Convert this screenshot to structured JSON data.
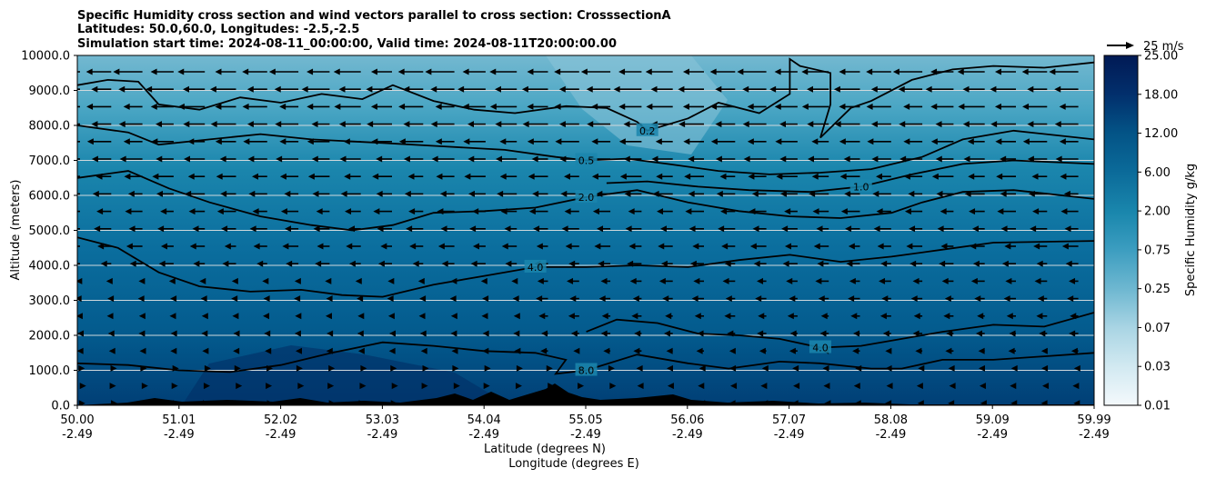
{
  "chart_data": {
    "type": "contourf",
    "title_lines": [
      "Specific Humidity cross section and wind vectors parallel to cross section: CrosssectionA",
      "Latitudes: 50.0,60.0, Longitudes: -2.5,-2.5",
      "Simulation start time: 2024-08-11_00:00:00, Valid time: 2024-08-11T20:00:00.00"
    ],
    "ylabel": "Altitude (meters)",
    "xlabel_lines": [
      "Latitude (degrees N)",
      "Longitude (degrees E)"
    ],
    "ylim": [
      0,
      10000
    ],
    "xlim": [
      50.0,
      59.99
    ],
    "y_ticks": [
      "0.0",
      "1000.0",
      "2000.0",
      "3000.0",
      "4000.0",
      "5000.0",
      "6000.0",
      "7000.0",
      "8000.0",
      "9000.0",
      "10000.0"
    ],
    "x_ticks": [
      {
        "lat": "50.00",
        "lon": "-2.49"
      },
      {
        "lat": "51.01",
        "lon": "-2.49"
      },
      {
        "lat": "52.02",
        "lon": "-2.49"
      },
      {
        "lat": "53.03",
        "lon": "-2.49"
      },
      {
        "lat": "54.04",
        "lon": "-2.49"
      },
      {
        "lat": "55.05",
        "lon": "-2.49"
      },
      {
        "lat": "56.06",
        "lon": "-2.49"
      },
      {
        "lat": "57.07",
        "lon": "-2.49"
      },
      {
        "lat": "58.08",
        "lon": "-2.49"
      },
      {
        "lat": "59.09",
        "lon": "-2.49"
      },
      {
        "lat": "59.99",
        "lon": "-2.49"
      }
    ],
    "colorbar": {
      "label": "Specific Humidity g/kg",
      "tick_labels": [
        "0.01",
        "0.03",
        "0.07",
        "0.25",
        "0.75",
        "2.00",
        "6.00",
        "12.00",
        "18.00",
        "25.00"
      ]
    },
    "quiver_key": "25 m/s",
    "contours": [
      {
        "level": "0.2",
        "points": [
          [
            50.0,
            9150
          ],
          [
            50.3,
            9300
          ],
          [
            50.6,
            9250
          ],
          [
            50.8,
            8600
          ],
          [
            51.2,
            8450
          ],
          [
            51.6,
            8800
          ],
          [
            52.0,
            8650
          ],
          [
            52.4,
            8900
          ],
          [
            52.8,
            8750
          ],
          [
            53.1,
            9150
          ],
          [
            53.5,
            8700
          ],
          [
            53.9,
            8450
          ],
          [
            54.3,
            8350
          ],
          [
            54.8,
            8550
          ],
          [
            55.2,
            8500
          ],
          [
            55.5,
            8100
          ],
          [
            55.6,
            7850
          ],
          [
            56.0,
            8200
          ],
          [
            56.3,
            8650
          ],
          [
            56.7,
            8350
          ],
          [
            57.0,
            8900
          ],
          [
            57.0,
            9900
          ],
          [
            57.1,
            9700
          ],
          [
            57.4,
            9500
          ],
          [
            57.4,
            8600
          ],
          [
            57.3,
            7650
          ],
          [
            57.6,
            8500
          ],
          [
            57.8,
            8700
          ],
          [
            58.2,
            9300
          ],
          [
            58.6,
            9600
          ],
          [
            59.0,
            9700
          ],
          [
            59.5,
            9650
          ],
          [
            59.99,
            9800
          ]
        ]
      },
      {
        "level": "0.5",
        "points": [
          [
            50.0,
            8000
          ],
          [
            50.5,
            7800
          ],
          [
            50.8,
            7450
          ],
          [
            51.3,
            7600
          ],
          [
            51.8,
            7750
          ],
          [
            52.3,
            7600
          ],
          [
            53.0,
            7500
          ],
          [
            53.6,
            7400
          ],
          [
            54.2,
            7300
          ],
          [
            54.7,
            7100
          ],
          [
            55.0,
            7000
          ],
          [
            55.4,
            7050
          ],
          [
            55.8,
            6900
          ],
          [
            56.3,
            6700
          ],
          [
            56.8,
            6600
          ],
          [
            57.3,
            6650
          ],
          [
            57.8,
            6750
          ],
          [
            58.3,
            7100
          ],
          [
            58.7,
            7600
          ],
          [
            59.2,
            7850
          ],
          [
            59.99,
            7600
          ]
        ]
      },
      {
        "level": "1.0",
        "points": [
          [
            55.2,
            6350
          ],
          [
            55.6,
            6400
          ],
          [
            56.1,
            6250
          ],
          [
            56.6,
            6150
          ],
          [
            57.2,
            6100
          ],
          [
            57.7,
            6250
          ],
          [
            58.2,
            6600
          ],
          [
            58.7,
            6900
          ],
          [
            59.2,
            7000
          ],
          [
            59.99,
            6900
          ]
        ]
      },
      {
        "level": "2.0",
        "points": [
          [
            50.0,
            6500
          ],
          [
            50.5,
            6700
          ],
          [
            50.9,
            6200
          ],
          [
            51.3,
            5800
          ],
          [
            51.8,
            5400
          ],
          [
            52.3,
            5150
          ],
          [
            52.7,
            5000
          ],
          [
            53.1,
            5150
          ],
          [
            53.5,
            5500
          ],
          [
            54.0,
            5550
          ],
          [
            54.5,
            5650
          ],
          [
            55.0,
            5950
          ],
          [
            55.5,
            6150
          ],
          [
            56.0,
            5800
          ],
          [
            56.5,
            5550
          ],
          [
            57.0,
            5400
          ],
          [
            57.5,
            5350
          ],
          [
            58.0,
            5500
          ],
          [
            58.3,
            5800
          ],
          [
            58.7,
            6100
          ],
          [
            59.2,
            6150
          ],
          [
            59.99,
            5900
          ]
        ]
      },
      {
        "level": "4.0",
        "points": [
          [
            50.0,
            4800
          ],
          [
            50.4,
            4500
          ],
          [
            50.8,
            3800
          ],
          [
            51.2,
            3400
          ],
          [
            51.7,
            3250
          ],
          [
            52.2,
            3300
          ],
          [
            52.6,
            3150
          ],
          [
            53.0,
            3100
          ],
          [
            53.5,
            3450
          ],
          [
            54.0,
            3700
          ],
          [
            54.5,
            3950
          ],
          [
            55.0,
            3950
          ],
          [
            55.5,
            4000
          ],
          [
            56.0,
            3950
          ],
          [
            56.5,
            4150
          ],
          [
            57.0,
            4300
          ],
          [
            57.5,
            4100
          ],
          [
            58.0,
            4250
          ],
          [
            58.5,
            4450
          ],
          [
            59.0,
            4650
          ],
          [
            59.99,
            4700
          ]
        ]
      },
      {
        "level": "4.0",
        "points": [
          [
            55.0,
            2100
          ],
          [
            55.3,
            2450
          ],
          [
            55.7,
            2350
          ],
          [
            56.1,
            2050
          ],
          [
            56.5,
            2000
          ],
          [
            56.9,
            1900
          ],
          [
            57.3,
            1650
          ],
          [
            57.7,
            1700
          ],
          [
            58.1,
            1900
          ],
          [
            58.5,
            2100
          ],
          [
            59.0,
            2300
          ],
          [
            59.5,
            2250
          ],
          [
            59.99,
            2650
          ]
        ]
      },
      {
        "level": "8.0",
        "points": [
          [
            50.0,
            1200
          ],
          [
            50.5,
            1150
          ],
          [
            51.0,
            1000
          ],
          [
            51.5,
            950
          ],
          [
            52.0,
            1150
          ],
          [
            52.5,
            1500
          ],
          [
            53.0,
            1800
          ],
          [
            53.5,
            1700
          ],
          [
            54.0,
            1550
          ],
          [
            54.5,
            1500
          ],
          [
            54.8,
            1300
          ],
          [
            54.7,
            900
          ],
          [
            55.0,
            1000
          ],
          [
            55.5,
            1450
          ],
          [
            56.0,
            1200
          ],
          [
            56.4,
            1050
          ],
          [
            56.9,
            1250
          ],
          [
            57.3,
            1200
          ],
          [
            57.8,
            1050
          ],
          [
            58.1,
            1050
          ],
          [
            58.5,
            1300
          ],
          [
            59.0,
            1300
          ],
          [
            59.5,
            1400
          ],
          [
            59.99,
            1500
          ]
        ]
      }
    ]
  }
}
